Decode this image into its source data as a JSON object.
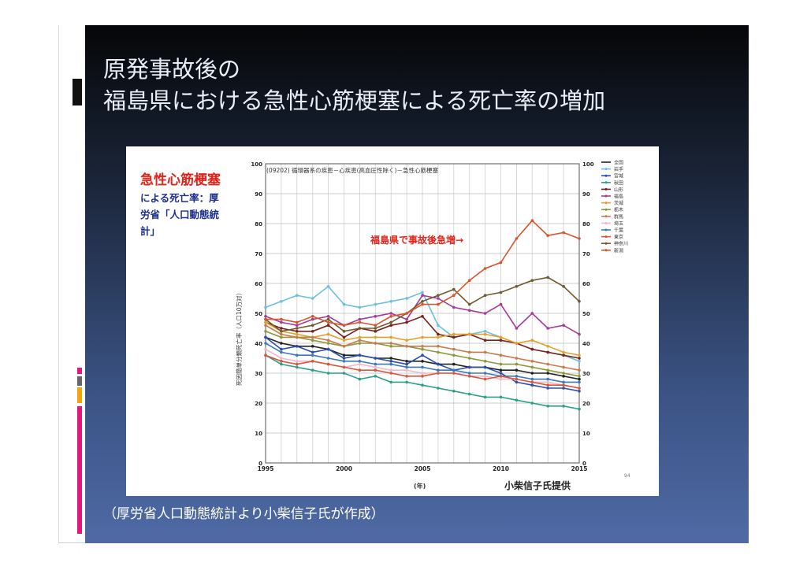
{
  "slide": {
    "title_line1": "原発事故後の",
    "title_line2": "福島県における急性心筋梗塞による死亡率の増加",
    "caption": "（厚労省人口動態統計より小柴信子氏が作成）"
  },
  "colors": {
    "deco_pink": "#e0197a",
    "deco_orange": "#f5a30a",
    "deco_gray": "#666666"
  },
  "chart_data": {
    "type": "line",
    "header": "(09202) 循環器系の疾患－心疾患(高血圧性除く)－急性心筋梗塞",
    "annotation_red": "急性心筋梗塞",
    "annotation_blue": [
      "による死亡率：厚",
      "労省「人口動態統",
      "計」"
    ],
    "arrow_label": "福島県で事故後急増→",
    "ylabel": "死因簡単分類死亡率（人口10万対）",
    "xlabel": "(年)",
    "credit": "小柴信子氏提供",
    "page_no": "94",
    "ylim": [
      0,
      100
    ],
    "yticks": [
      "0",
      "10",
      "20",
      "30",
      "40",
      "50",
      "60",
      "70",
      "80",
      "90",
      "100"
    ],
    "xlim": [
      1995,
      2015
    ],
    "xticks": [
      "1995",
      "2000",
      "2005",
      "2010",
      "2015"
    ],
    "x": [
      1995,
      1996,
      1997,
      1998,
      1999,
      2000,
      2001,
      2002,
      2003,
      2004,
      2005,
      2006,
      2007,
      2008,
      2009,
      2010,
      2011,
      2012,
      2013,
      2014,
      2015
    ],
    "legend_position": "right",
    "series": [
      {
        "name": "全国",
        "color": "#222222",
        "values": [
          42,
          40,
          39,
          39,
          38,
          36,
          36,
          35,
          35,
          34,
          34,
          33,
          33,
          32,
          32,
          31,
          31,
          30,
          30,
          29,
          28
        ]
      },
      {
        "name": "岩手",
        "color": "#6bbfe3",
        "values": [
          52,
          54,
          56,
          55,
          59,
          53,
          52,
          53,
          54,
          55,
          57,
          46,
          42,
          43,
          44,
          42,
          40,
          38,
          37,
          36,
          34
        ]
      },
      {
        "name": "宮城",
        "color": "#2a4fae",
        "values": [
          42,
          38,
          39,
          37,
          38,
          35,
          36,
          35,
          34,
          33,
          36,
          33,
          31,
          32,
          32,
          30,
          27,
          26,
          25,
          25,
          24
        ]
      },
      {
        "name": "秋田",
        "color": "#2aa08a",
        "values": [
          36,
          33,
          32,
          31,
          30,
          30,
          28,
          29,
          27,
          27,
          26,
          25,
          24,
          23,
          22,
          22,
          21,
          20,
          19,
          19,
          18
        ]
      },
      {
        "name": "山形",
        "color": "#7a2018",
        "values": [
          47,
          45,
          44,
          44,
          46,
          42,
          45,
          44,
          46,
          47,
          49,
          43,
          42,
          43,
          41,
          41,
          40,
          38,
          37,
          36,
          35
        ]
      },
      {
        "name": "福島",
        "color": "#a53b9a",
        "values": [
          49,
          47,
          46,
          48,
          49,
          46,
          48,
          49,
          50,
          48,
          56,
          55,
          52,
          51,
          50,
          53,
          45,
          50,
          45,
          46,
          43
        ]
      },
      {
        "name": "茨城",
        "color": "#e2a12a",
        "values": [
          47,
          44,
          43,
          42,
          43,
          41,
          42,
          42,
          42,
          41,
          42,
          42,
          43,
          43,
          43,
          42,
          40,
          41,
          39,
          37,
          36
        ]
      },
      {
        "name": "栃木",
        "color": "#8a9a3a",
        "values": [
          44,
          42,
          42,
          41,
          40,
          39,
          40,
          40,
          39,
          39,
          38,
          37,
          36,
          35,
          34,
          33,
          33,
          32,
          31,
          30,
          29
        ]
      },
      {
        "name": "群馬",
        "color": "#c97a4a",
        "values": [
          46,
          43,
          42,
          42,
          41,
          39,
          41,
          40,
          40,
          39,
          39,
          39,
          38,
          37,
          37,
          36,
          35,
          34,
          33,
          32,
          31
        ]
      },
      {
        "name": "埼玉",
        "color": "#f0b8c8",
        "values": [
          38,
          35,
          34,
          34,
          33,
          32,
          33,
          32,
          31,
          31,
          30,
          30,
          30,
          29,
          29,
          28,
          28,
          27,
          27,
          26,
          25
        ]
      },
      {
        "name": "千葉",
        "color": "#3a78c0",
        "values": [
          40,
          37,
          36,
          36,
          35,
          34,
          34,
          33,
          33,
          32,
          32,
          31,
          31,
          30,
          30,
          29,
          29,
          28,
          28,
          27,
          27
        ]
      },
      {
        "name": "東京",
        "color": "#d9553a",
        "values": [
          36,
          34,
          33,
          34,
          33,
          32,
          31,
          31,
          30,
          29,
          29,
          30,
          30,
          29,
          28,
          29,
          28,
          27,
          26,
          26,
          25
        ]
      },
      {
        "name": "神奈川",
        "color": "#6e5a2c",
        "values": [
          48,
          44,
          45,
          46,
          48,
          44,
          45,
          45,
          47,
          50,
          54,
          56,
          58,
          53,
          56,
          57,
          59,
          61,
          62,
          59,
          54
        ]
      },
      {
        "name": "新潟",
        "color": "#d9542a",
        "values": [
          48,
          48,
          47,
          49,
          47,
          46,
          47,
          46,
          49,
          50,
          53,
          53,
          56,
          61,
          65,
          67,
          75,
          81,
          76,
          77,
          75
        ]
      }
    ]
  }
}
